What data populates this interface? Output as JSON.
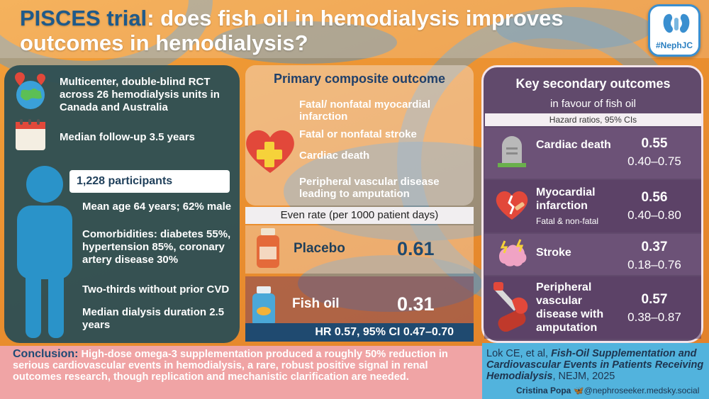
{
  "title": {
    "highlight": "PISCES trial",
    "rest": ": does fish oil in hemodialysis improves outcomes in hemodialysis?"
  },
  "logo": {
    "tag": "#NephJC"
  },
  "design": {
    "study_type": "Multicenter, double-blind RCT across 26 hemodialysis units in Canada and Australia",
    "follow_up": "Median follow-up 3.5 years",
    "participants": "1,228 participants",
    "age_sex": "Mean age 64 years; 62% male",
    "comorbidities": "Comorbidities: diabetes 55%, hypertension 85%, coronary artery disease 30%",
    "prior_cvd": "Two-thirds without prior CVD",
    "dialysis_duration": "Median dialysis duration 2.5 years"
  },
  "primary": {
    "title": "Primary composite outcome",
    "items": [
      "Fatal/ nonfatal myocardial infarction",
      "Fatal or nonfatal stroke",
      "Cardiac death",
      "Peripheral vascular disease leading to amputation"
    ],
    "event_rate_label": "Even rate (per 1000 patient days)",
    "placebo_label": "Placebo",
    "placebo_value": "0.61",
    "fishoil_label": "Fish oil",
    "fishoil_value": "0.31",
    "hr": "HR 0.57, 95% CI 0.47–0.70"
  },
  "secondary": {
    "title": "Key secondary outcomes",
    "subtitle": "in favour of fish oil",
    "hr_label": "Hazard ratios, 95% CIs",
    "rows": [
      {
        "label": "Cardiac death",
        "note": "",
        "hr": "0.55",
        "ci": "0.40–0.75"
      },
      {
        "label": "Myocardial infarction",
        "note": "Fatal & non-fatal",
        "hr": "0.56",
        "ci": "0.40–0.80"
      },
      {
        "label": "Stroke",
        "note": "",
        "hr": "0.37",
        "ci": "0.18–0.76"
      },
      {
        "label": "Peripheral vascular disease with amputation",
        "note": "",
        "hr": "0.57",
        "ci": "0.38–0.87"
      }
    ]
  },
  "conclusion": {
    "label": "Conclusion:",
    "text": "High-dose omega-3 supplementation produced a roughly 50% reduction in serious cardiovascular events in hemodialysis, a rare, robust positive signal in renal outcomes research, though replication and mechanistic clarification are needed."
  },
  "reference": {
    "authors": "Lok CE, et al,",
    "article": "Fish-Oil Supplementation and Cardiovascular Events in Patients Receiving Hemodialysis",
    "journal": ", NEJM, 2025",
    "author_credit": "Cristina Popa",
    "handle": "@nephroseeker.medsky.social"
  },
  "colors": {
    "accent": "#1f5a8a",
    "orange": "#ea8f2f",
    "panel_left": "#2f4f54",
    "panel_right": "#614a6c"
  }
}
